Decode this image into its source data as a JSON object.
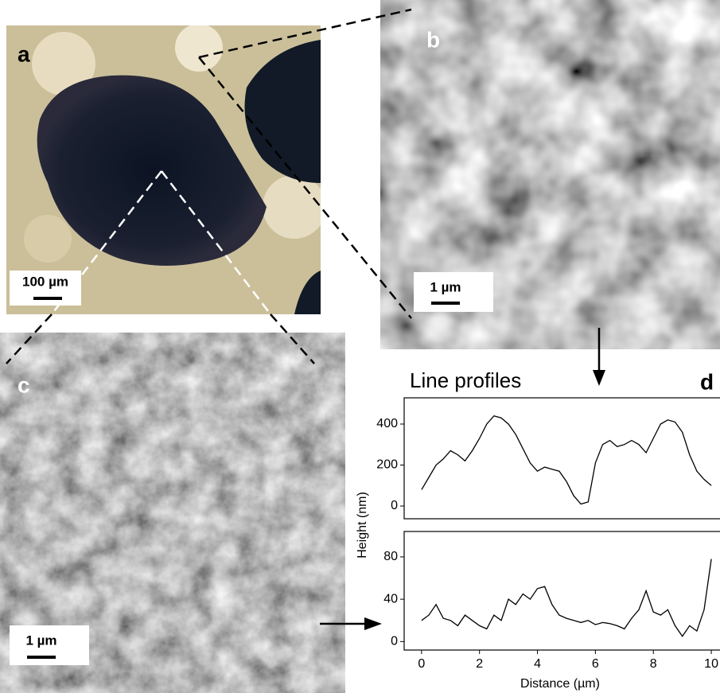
{
  "panels": [
    {
      "label": "a",
      "scale_bar": "100 µm"
    },
    {
      "label": "b",
      "scale_bar": "1 µm"
    },
    {
      "label": "c",
      "scale_bar": "1 µm"
    }
  ],
  "chart_data": [
    {
      "type": "line",
      "title": "Line profiles",
      "panel_label": "d",
      "ylabel": "Height (nm)",
      "x": [
        0,
        0.25,
        0.5,
        0.75,
        1,
        1.25,
        1.5,
        1.75,
        2,
        2.25,
        2.5,
        2.75,
        3,
        3.25,
        3.5,
        3.75,
        4,
        4.25,
        4.5,
        4.75,
        5,
        5.25,
        5.5,
        5.75,
        6,
        6.25,
        6.5,
        6.75,
        7,
        7.25,
        7.5,
        7.75,
        8,
        8.25,
        8.5,
        8.75,
        9,
        9.25,
        9.5,
        9.75,
        10
      ],
      "values": [
        80,
        140,
        200,
        230,
        270,
        250,
        220,
        270,
        330,
        400,
        440,
        430,
        400,
        350,
        280,
        210,
        170,
        190,
        180,
        170,
        120,
        50,
        10,
        20,
        210,
        300,
        320,
        290,
        300,
        320,
        300,
        260,
        330,
        400,
        420,
        410,
        360,
        250,
        170,
        130,
        100
      ],
      "color": "#000000",
      "xlim": [
        -0.6,
        10.3
      ],
      "ylim": [
        -62,
        528
      ],
      "yticks": [
        0,
        200,
        400
      ]
    },
    {
      "type": "line",
      "xlabel": "Distance (µm)",
      "x": [
        0,
        0.25,
        0.5,
        0.75,
        1,
        1.25,
        1.5,
        1.75,
        2,
        2.25,
        2.5,
        2.75,
        3,
        3.25,
        3.5,
        3.75,
        4,
        4.25,
        4.5,
        4.75,
        5,
        5.25,
        5.5,
        5.75,
        6,
        6.25,
        6.5,
        6.75,
        7,
        7.25,
        7.5,
        7.75,
        8,
        8.25,
        8.5,
        8.75,
        9,
        9.25,
        9.5,
        9.75,
        10
      ],
      "values": [
        20,
        25,
        35,
        22,
        20,
        15,
        25,
        20,
        15,
        12,
        25,
        20,
        40,
        35,
        45,
        40,
        50,
        52,
        35,
        25,
        22,
        20,
        18,
        20,
        16,
        18,
        17,
        15,
        12,
        22,
        30,
        48,
        28,
        25,
        30,
        15,
        5,
        15,
        10,
        30,
        78
      ],
      "color": "#000000",
      "xlim": [
        -0.6,
        10.3
      ],
      "ylim": [
        -8,
        104
      ],
      "xticks": [
        0,
        2,
        4,
        6,
        8,
        10
      ],
      "yticks": [
        0,
        40,
        80
      ]
    }
  ]
}
